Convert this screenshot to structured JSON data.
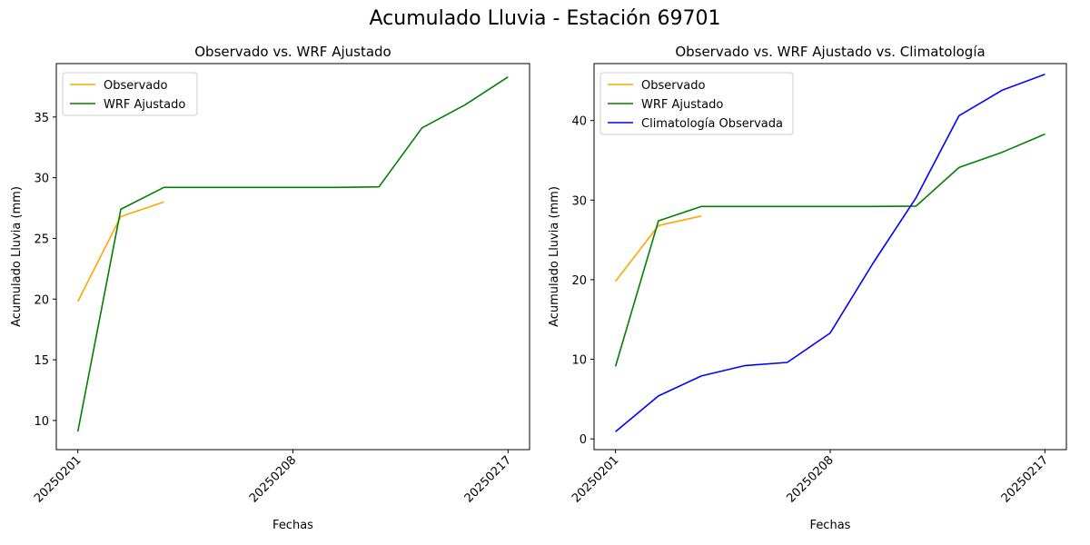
{
  "figure_title": "Acumulado Lluvia - Estación 69701",
  "chart_data": [
    {
      "type": "line",
      "title": "Observado vs. WRF Ajustado",
      "xlabel": "Fechas",
      "ylabel": "Acumulado Lluvia (mm)",
      "xlim": [
        -0.5,
        10.5
      ],
      "ylim": [
        7.6,
        39.4
      ],
      "yticks": [
        10,
        15,
        20,
        25,
        30,
        35
      ],
      "xticks": [
        {
          "pos": 0,
          "label": "20250201"
        },
        {
          "pos": 5,
          "label": "20250208"
        },
        {
          "pos": 10,
          "label": "20250217"
        }
      ],
      "legend_loc": "upper-left",
      "series": [
        {
          "name": "Observado",
          "color": "#ffa500",
          "x": [
            0,
            1,
            2
          ],
          "y": [
            19.8,
            26.8,
            28.0
          ]
        },
        {
          "name": "WRF Ajustado",
          "color": "#008000",
          "x": [
            0,
            1,
            2,
            3,
            4,
            5,
            6,
            7,
            8,
            9,
            10
          ],
          "y": [
            9.1,
            27.4,
            29.2,
            29.2,
            29.2,
            29.2,
            29.2,
            29.25,
            34.1,
            36.0,
            38.3
          ]
        }
      ]
    },
    {
      "type": "line",
      "title": "Observado vs. WRF Ajustado vs. Climatología",
      "xlabel": "Fechas",
      "ylabel": "Acumulado Lluvia (mm)",
      "xlim": [
        -0.5,
        10.5
      ],
      "ylim": [
        -1.35,
        47.15
      ],
      "yticks": [
        0,
        10,
        20,
        30,
        40
      ],
      "xticks": [
        {
          "pos": 0,
          "label": "20250201"
        },
        {
          "pos": 5,
          "label": "20250208"
        },
        {
          "pos": 10,
          "label": "20250217"
        }
      ],
      "legend_loc": "upper-left",
      "series": [
        {
          "name": "Observado",
          "color": "#ffa500",
          "x": [
            0,
            1,
            2
          ],
          "y": [
            19.8,
            26.8,
            28.0
          ]
        },
        {
          "name": "WRF Ajustado",
          "color": "#008000",
          "x": [
            0,
            1,
            2,
            3,
            4,
            5,
            6,
            7,
            8,
            9,
            10
          ],
          "y": [
            9.1,
            27.4,
            29.2,
            29.2,
            29.2,
            29.2,
            29.2,
            29.25,
            34.1,
            36.0,
            38.3
          ]
        },
        {
          "name": "Climatología Observada",
          "color": "#0000ff",
          "x": [
            0,
            1,
            2,
            3,
            4,
            5,
            6,
            7,
            8,
            9,
            10
          ],
          "y": [
            0.9,
            5.4,
            7.9,
            9.2,
            9.6,
            13.3,
            22.1,
            30.3,
            40.6,
            43.8,
            45.8
          ]
        }
      ]
    }
  ]
}
